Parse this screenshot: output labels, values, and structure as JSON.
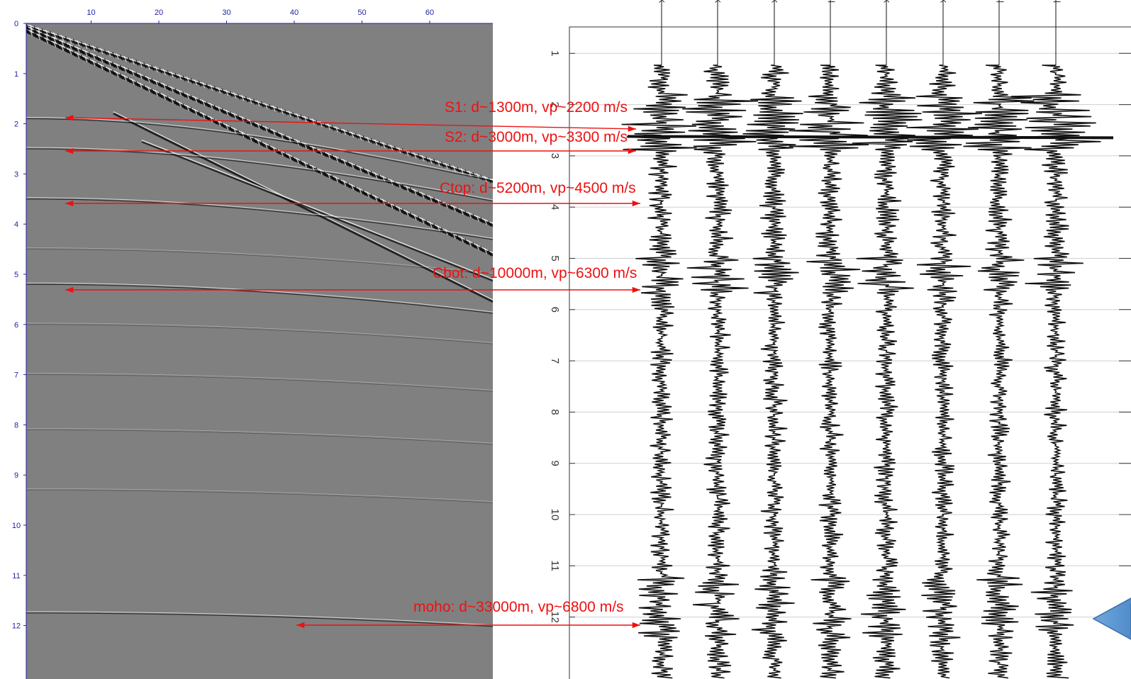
{
  "left_panel": {
    "x_ticks": [
      "10",
      "20",
      "30",
      "40",
      "50",
      "60"
    ],
    "y_ticks": [
      "0",
      "1",
      "2",
      "3",
      "4",
      "5",
      "6",
      "7",
      "8",
      "9",
      "10",
      "11",
      "12"
    ]
  },
  "right_panel": {
    "trace_headers": [
      "ack",
      "ack",
      "ack",
      "All",
      "ack",
      "ack",
      "All",
      "All"
    ],
    "time_ticks": [
      "1",
      "2",
      "3",
      "4",
      "5",
      "6",
      "7",
      "8",
      "9",
      "10",
      "11",
      "12"
    ]
  },
  "annotations": [
    {
      "label": "S1: d~1300m, vp~2200 m/s",
      "time": 1.95
    },
    {
      "label": "S2: d~3000m, vp~3300 m/s",
      "time": 2.55
    },
    {
      "label": "Ctop: d~5200m, vp~4500 m/s",
      "time": 3.55
    },
    {
      "label": "Cbot: d~10000m, vp~6300 m/s",
      "time": 5.25
    },
    {
      "label": "moho: d~33000m, vp~6800 m/s",
      "time": 11.8
    }
  ],
  "colors": {
    "annotation": "#ee1111",
    "axis": "#2222aa",
    "gather_bg": "#7f7f7f",
    "trace": "#111111",
    "marker_arrow": "#5b9bd5"
  },
  "icons": {
    "marker": "left-arrow-icon"
  }
}
